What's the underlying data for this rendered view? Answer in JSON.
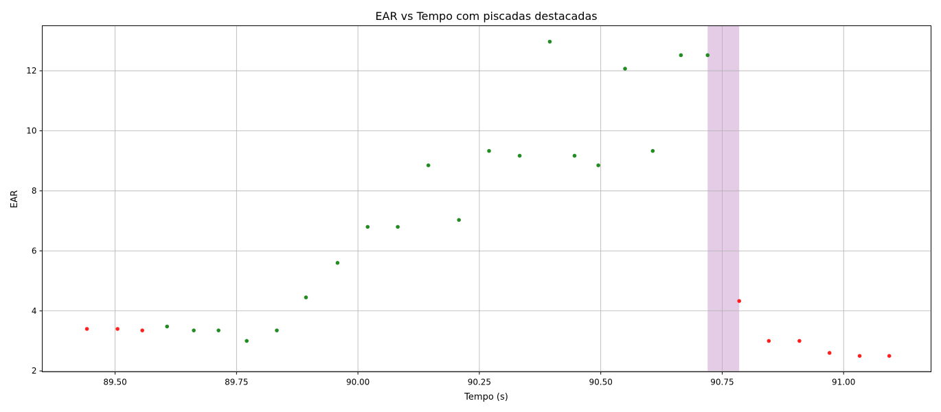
{
  "chart_data": {
    "type": "scatter",
    "title": "EAR vs Tempo com piscadas destacadas",
    "xlabel": "Tempo (s)",
    "ylabel": "EAR",
    "xlim": [
      89.35,
      91.18
    ],
    "ylim": [
      1.97,
      13.5
    ],
    "xticks": [
      89.5,
      89.75,
      90.0,
      90.25,
      90.5,
      90.75,
      91.0
    ],
    "xtick_labels": [
      "89.50",
      "89.75",
      "90.00",
      "90.25",
      "90.50",
      "90.75",
      "91.00"
    ],
    "yticks": [
      2,
      4,
      6,
      8,
      10,
      12
    ],
    "ytick_labels": [
      "2",
      "4",
      "6",
      "8",
      "10",
      "12"
    ],
    "grid": true,
    "highlight_span": {
      "x_start": 90.72,
      "x_end": 90.785,
      "color": "#e4cce7"
    },
    "series": [
      {
        "color": "#ff2020",
        "points": [
          [
            89.442,
            3.4
          ],
          [
            89.505,
            3.4
          ],
          [
            89.556,
            3.35
          ],
          [
            90.785,
            4.33
          ],
          [
            90.846,
            3.0
          ],
          [
            90.909,
            3.0
          ],
          [
            90.971,
            2.6
          ],
          [
            91.033,
            2.5
          ],
          [
            91.094,
            2.5
          ]
        ]
      },
      {
        "color": "#228b22",
        "points": [
          [
            89.607,
            3.48
          ],
          [
            89.662,
            3.35
          ],
          [
            89.713,
            3.35
          ],
          [
            89.771,
            3.0
          ],
          [
            89.833,
            3.35
          ],
          [
            89.893,
            4.45
          ],
          [
            89.958,
            5.6
          ],
          [
            90.02,
            6.8
          ],
          [
            90.082,
            6.8
          ],
          [
            90.145,
            8.85
          ],
          [
            90.208,
            7.03
          ],
          [
            90.27,
            9.33
          ],
          [
            90.333,
            9.17
          ],
          [
            90.395,
            12.97
          ],
          [
            90.446,
            9.17
          ],
          [
            90.495,
            8.85
          ],
          [
            90.55,
            12.07
          ],
          [
            90.607,
            9.33
          ],
          [
            90.665,
            12.52
          ],
          [
            90.72,
            12.52
          ]
        ]
      }
    ]
  }
}
